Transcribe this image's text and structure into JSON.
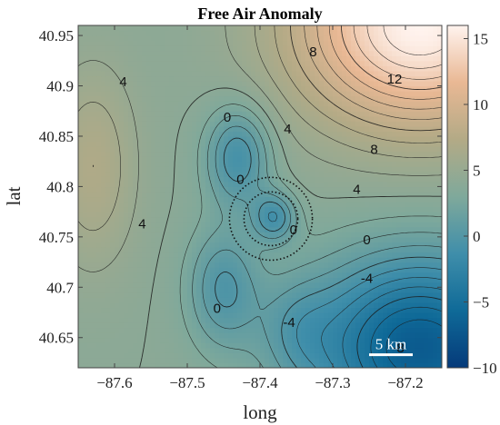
{
  "chart_data": {
    "type": "heatmap",
    "title": "Free Air Anomaly",
    "xlabel": "long",
    "ylabel": "lat",
    "xlim": [
      -87.65,
      -87.15
    ],
    "ylim": [
      40.62,
      40.96
    ],
    "x_ticks": [
      "-87.6",
      "-87.5",
      "-87.4",
      "-87.3",
      "-87.2"
    ],
    "y_ticks": [
      "40.65",
      "40.7",
      "40.75",
      "40.8",
      "40.85",
      "40.9",
      "40.95"
    ],
    "colorbar": {
      "range": [
        -10,
        16
      ],
      "ticks": [
        "-10",
        "-5",
        "0",
        "5",
        "10",
        "15"
      ],
      "colormap": [
        "#053a7a",
        "#0f6a98",
        "#3f8eaa",
        "#7fa99b",
        "#b3aa86",
        "#e9b894",
        "#fff3ee"
      ]
    },
    "contour_interval": 1,
    "contour_labels": [
      {
        "text": "4",
        "lon": -87.588,
        "lat": 40.904
      },
      {
        "text": "4",
        "lon": -87.562,
        "lat": 40.763
      },
      {
        "text": "0",
        "lon": -87.445,
        "lat": 40.869
      },
      {
        "text": "0",
        "lon": -87.427,
        "lat": 40.807
      },
      {
        "text": "4",
        "lon": -87.362,
        "lat": 40.857
      },
      {
        "text": "0",
        "lon": -87.354,
        "lat": 40.757
      },
      {
        "text": "0",
        "lon": -87.459,
        "lat": 40.679
      },
      {
        "text": "8",
        "lon": -87.327,
        "lat": 40.934
      },
      {
        "text": "12",
        "lon": -87.215,
        "lat": 40.907
      },
      {
        "text": "8",
        "lon": -87.243,
        "lat": 40.837
      },
      {
        "text": "4",
        "lon": -87.267,
        "lat": 40.797
      },
      {
        "text": "0",
        "lon": -87.253,
        "lat": 40.747
      },
      {
        "text": "-4",
        "lon": -87.253,
        "lat": 40.709
      },
      {
        "text": "-4",
        "lon": -87.36,
        "lat": 40.665
      },
      {
        "text": "-8",
        "lon": -87.21,
        "lat": 40.64
      }
    ],
    "circles": [
      {
        "lon": -87.385,
        "lat": 40.768,
        "radius_deg": 0.057
      },
      {
        "lon": -87.385,
        "lat": 40.768,
        "radius_deg": 0.037
      }
    ],
    "scale_bar": {
      "label": "5 km",
      "lon_start": -87.25,
      "lon_end": -87.19,
      "lat": 40.633
    }
  }
}
